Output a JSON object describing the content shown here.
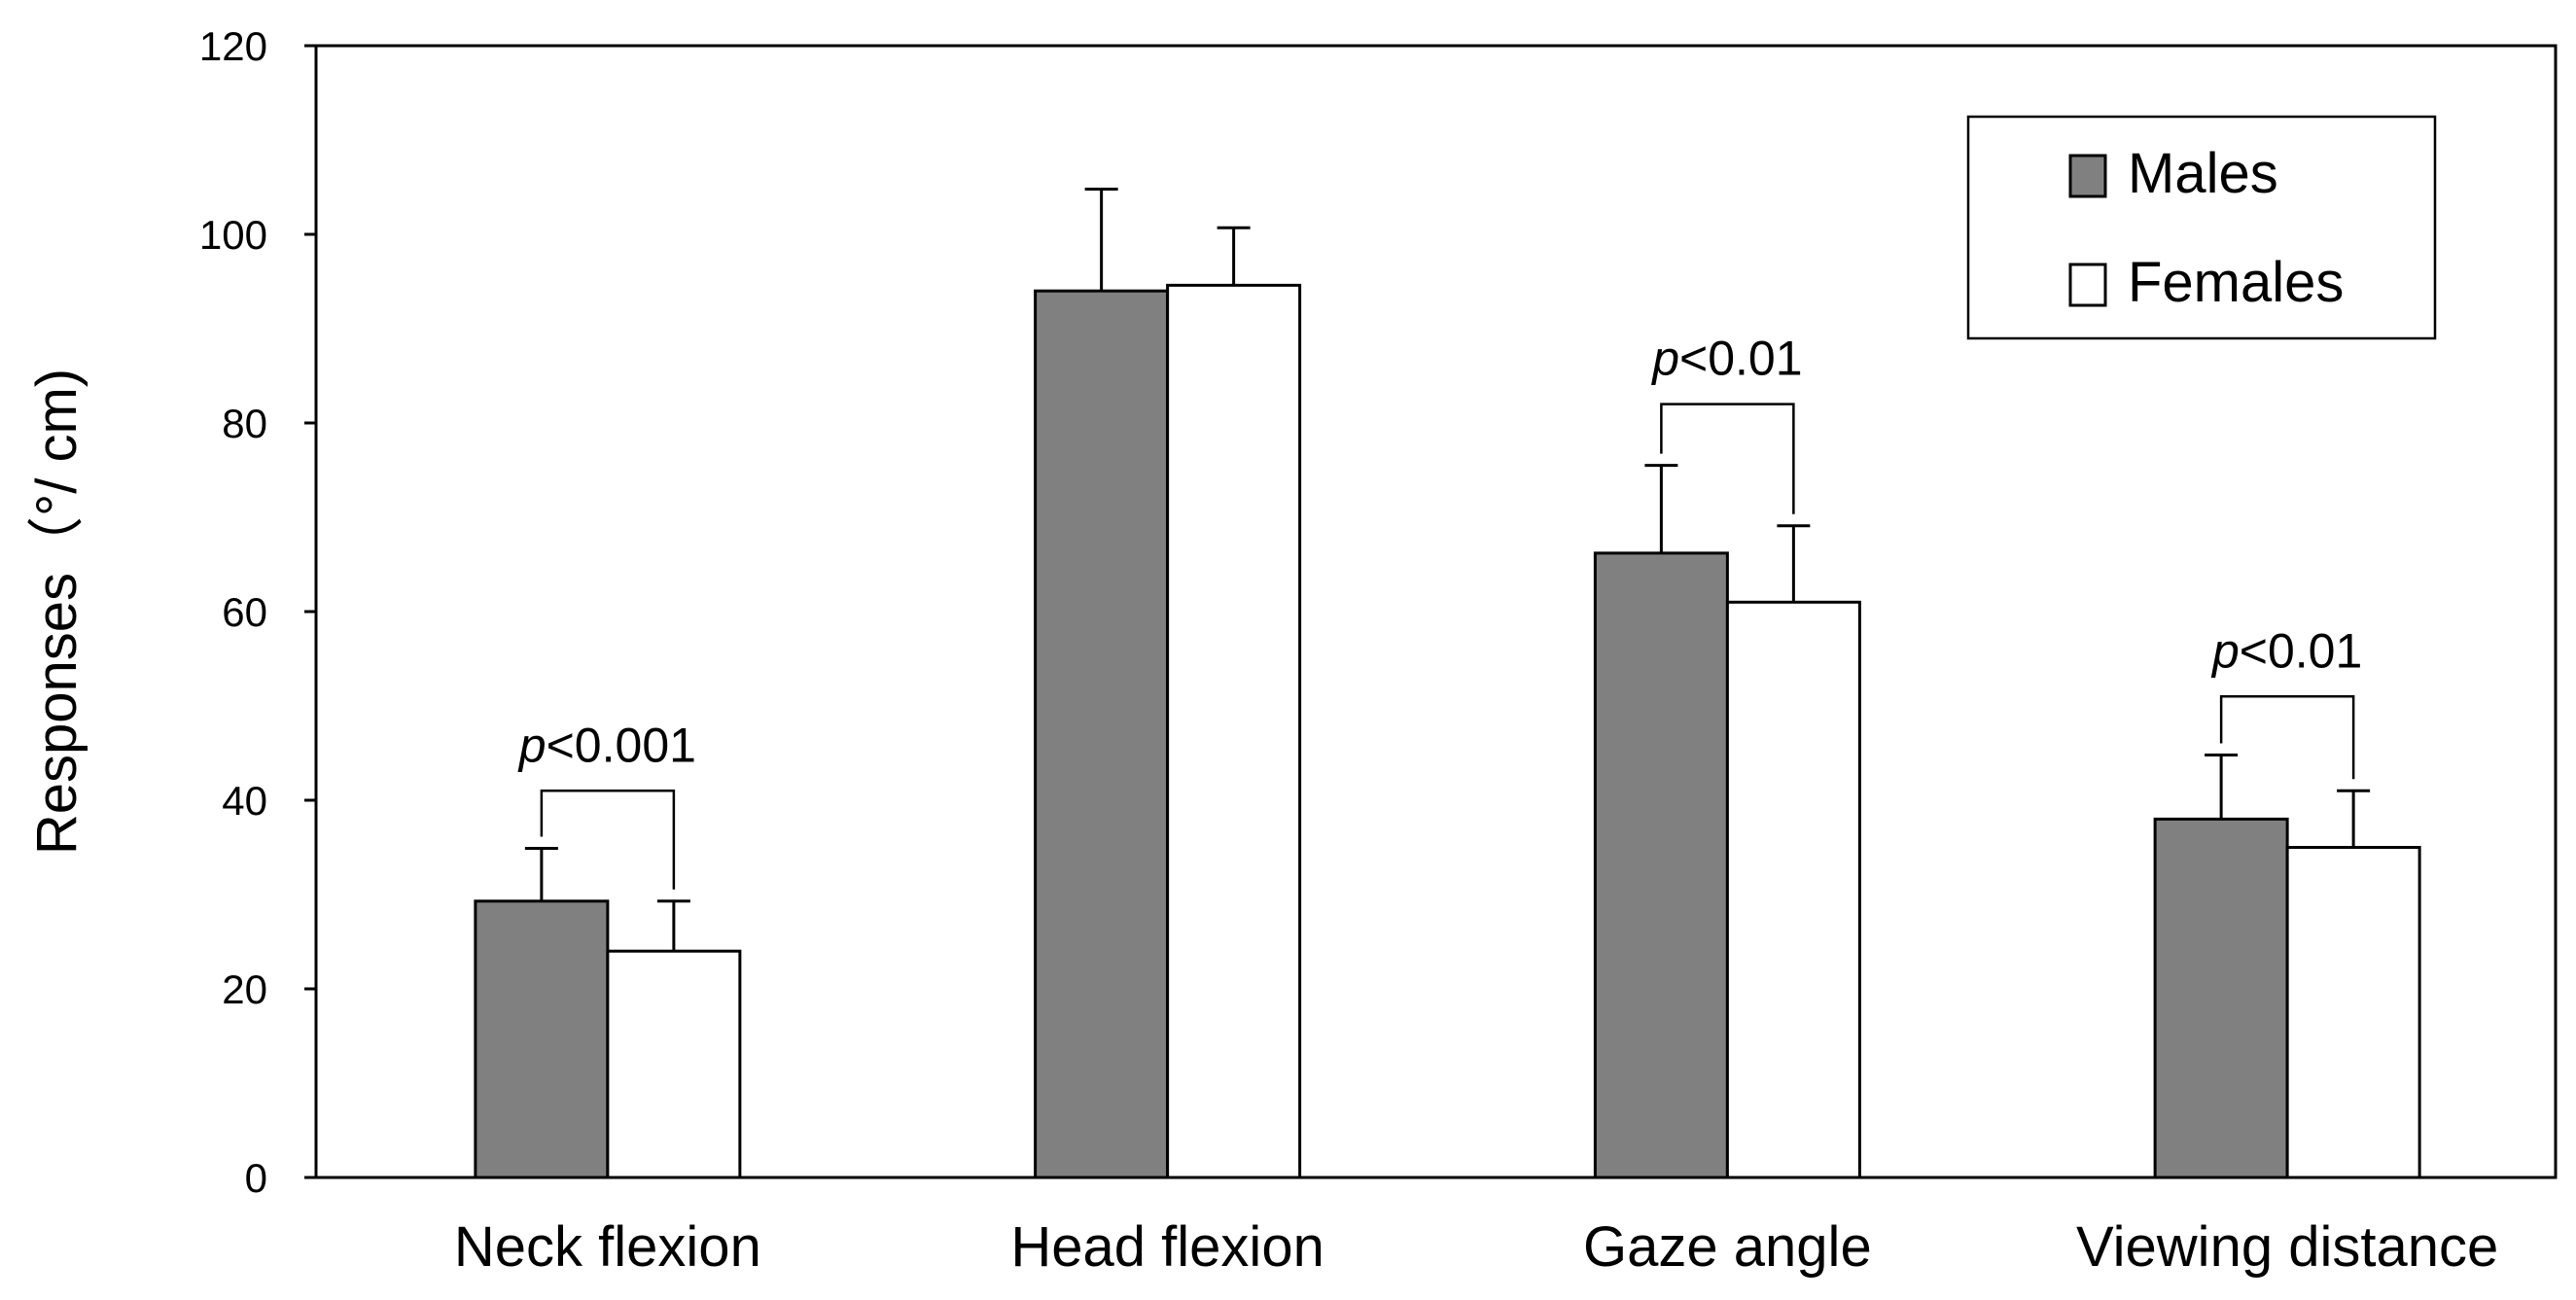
{
  "chart_data": {
    "type": "bar",
    "categories": [
      "Neck flexion",
      "Head flexion",
      "Gaze angle",
      "Viewing distance"
    ],
    "series": [
      {
        "name": "Males",
        "color": "#808080",
        "values": [
          29.3,
          94.0,
          66.2,
          38.0
        ],
        "errors": [
          5.6,
          10.8,
          9.3,
          6.8
        ]
      },
      {
        "name": "Females",
        "color": "#ffffff",
        "values": [
          24.0,
          94.6,
          61.0,
          35.0
        ],
        "errors": [
          5.3,
          6.1,
          8.1,
          6.0
        ]
      }
    ],
    "ylabel": "Responses（°/ cm)",
    "ylim": [
      0,
      120
    ],
    "yticks": [
      "0",
      "20",
      "40",
      "60",
      "80",
      "100",
      "120"
    ],
    "grid": false,
    "legend_position": "top-right",
    "annotations": [
      {
        "category_index": 0,
        "prefix": "p",
        "text": "<0.001",
        "y_value": 41
      },
      {
        "category_index": 2,
        "prefix": "p",
        "text": "<0.01",
        "y_value": 82
      },
      {
        "category_index": 3,
        "prefix": "p",
        "text": "<0.01",
        "y_value": 51
      }
    ]
  }
}
